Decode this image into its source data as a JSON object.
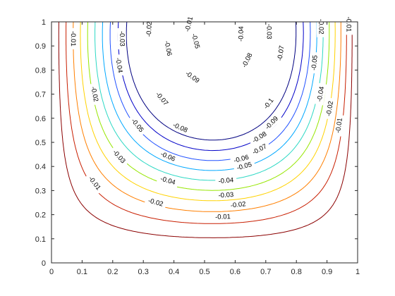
{
  "chart_data": {
    "type": "contour",
    "title": "",
    "xlabel": "",
    "ylabel": "",
    "xlim": [
      0,
      1
    ],
    "ylim": [
      0,
      1
    ],
    "xticks": [
      "0",
      "0.1",
      "0.2",
      "0.3",
      "0.4",
      "0.5",
      "0.6",
      "0.7",
      "0.8",
      "0.9",
      "1"
    ],
    "yticks": [
      "0",
      "0.1",
      "0.2",
      "0.3",
      "0.4",
      "0.5",
      "0.6",
      "0.7",
      "0.8",
      "0.9",
      "1"
    ],
    "grid": false,
    "box": true,
    "colormap": "jet",
    "levels": [
      {
        "value": -0.01,
        "label": "-0.01",
        "color": "#8b0000",
        "label_at": [
          [
            0.07,
            0.93
          ],
          [
            0.14,
            0.33
          ],
          [
            0.56,
            0.19
          ],
          [
            0.94,
            0.57
          ],
          [
            0.97,
            0.99
          ],
          [
            0.45,
            0.99
          ]
        ]
      },
      {
        "value": -0.02,
        "label": "-0.02",
        "color": "#c81e00",
        "label_at": [
          [
            0.14,
            0.7
          ],
          [
            0.34,
            0.25
          ],
          [
            0.61,
            0.24
          ],
          [
            0.91,
            0.64
          ],
          [
            0.88,
            0.98
          ],
          [
            0.32,
            0.97
          ]
        ]
      },
      {
        "value": -0.03,
        "label": "-0.03",
        "color": "#ff7f00",
        "label_at": [
          [
            0.22,
            0.44
          ],
          [
            0.57,
            0.28
          ],
          [
            0.71,
            0.96
          ],
          [
            0.23,
            0.93
          ]
        ]
      },
      {
        "value": -0.04,
        "label": "-0.04",
        "color": "#ffd200",
        "label_at": [
          [
            0.22,
            0.82
          ],
          [
            0.38,
            0.34
          ],
          [
            0.57,
            0.34
          ],
          [
            0.88,
            0.7
          ],
          [
            0.62,
            0.95
          ]
        ]
      },
      {
        "value": -0.05,
        "label": "-0.05",
        "color": "#96e600",
        "label_at": [
          [
            0.28,
            0.57
          ],
          [
            0.63,
            0.4
          ],
          [
            0.86,
            0.83
          ],
          [
            0.47,
            0.92
          ]
        ]
      },
      {
        "value": -0.06,
        "label": "-0.06",
        "color": "#2cd8c4",
        "label_at": [
          [
            0.38,
            0.44
          ],
          [
            0.62,
            0.43
          ],
          [
            0.38,
            0.89
          ]
        ]
      },
      {
        "value": -0.07,
        "label": "-0.07",
        "color": "#00a8ff",
        "label_at": [
          [
            0.36,
            0.68
          ],
          [
            0.68,
            0.47
          ],
          [
            0.75,
            0.87
          ]
        ]
      },
      {
        "value": -0.08,
        "label": "-0.08",
        "color": "#2050ff",
        "label_at": [
          [
            0.42,
            0.56
          ],
          [
            0.68,
            0.52
          ],
          [
            0.64,
            0.84
          ]
        ]
      },
      {
        "value": -0.09,
        "label": "-0.09",
        "color": "#0000c8",
        "label_at": [
          [
            0.46,
            0.77
          ],
          [
            0.72,
            0.58
          ]
        ]
      },
      {
        "value": -0.1,
        "label": "-0.1",
        "color": "#000080",
        "label_at": [
          [
            0.71,
            0.66
          ]
        ]
      }
    ]
  }
}
